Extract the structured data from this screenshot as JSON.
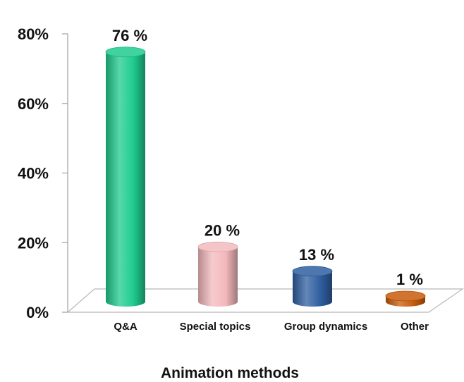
{
  "chart_data": {
    "type": "bar",
    "style": "3d-cylinder",
    "xlabel": "Animation methods",
    "ylabel": "",
    "ylim": [
      0,
      80
    ],
    "yticks": [
      "0%",
      "20%",
      "40%",
      "60%",
      "80%"
    ],
    "categories": [
      "Q&A",
      "Special topics",
      "Group dynamics",
      "Other"
    ],
    "values": [
      76,
      20,
      13,
      1
    ],
    "data_labels": [
      "76 %",
      "20 %",
      "13 %",
      "1 %"
    ],
    "colors": [
      "#1fcb8e",
      "#f3b9bc",
      "#2f5fa0",
      "#c85c0c"
    ],
    "grid": false
  }
}
